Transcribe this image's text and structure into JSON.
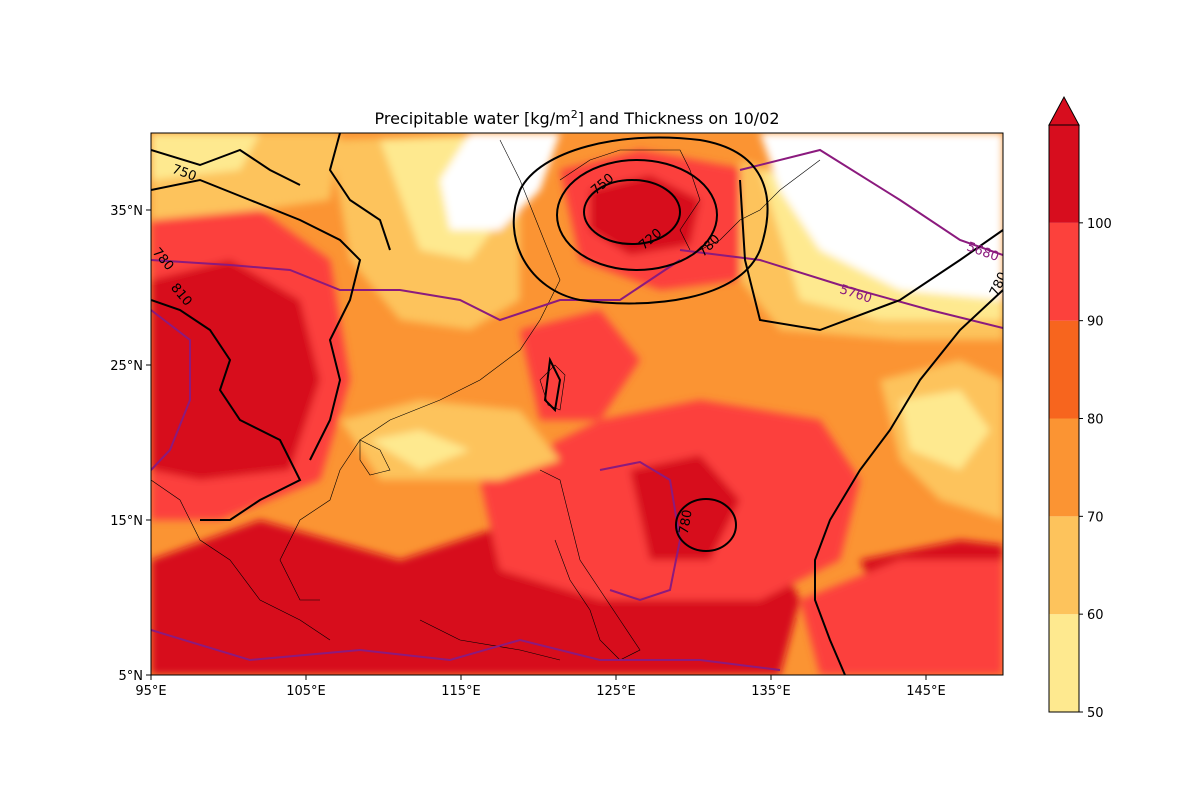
{
  "title": {
    "prefix": "Precipitable water [kg/m",
    "sup": "2",
    "suffix": "] and Thickness on 10/02"
  },
  "map": {
    "lon_ticks": [
      "95°E",
      "105°E",
      "115°E",
      "125°E",
      "135°E",
      "145°E"
    ],
    "lat_ticks": [
      "5°N",
      "15°N",
      "25°N",
      "35°N"
    ],
    "lon_range": [
      95,
      150
    ],
    "lat_range": [
      5,
      40
    ]
  },
  "colorbar": {
    "ticks": [
      "50",
      "60",
      "70",
      "80",
      "90",
      "100"
    ],
    "colors": [
      "#fee98f",
      "#fdc35c",
      "#fb9433",
      "#f7651e",
      "#fc413c",
      "#d70d1e"
    ],
    "extend": "max"
  },
  "contour_labels": {
    "black": [
      "750",
      "720",
      "780",
      "780",
      "810",
      "780",
      "780"
    ],
    "purple": [
      "5680",
      "5760",
      "750"
    ]
  },
  "colors": {
    "thickness_black": "#000000",
    "height_purple": "#8b1a7e",
    "coastline": "#000000"
  }
}
